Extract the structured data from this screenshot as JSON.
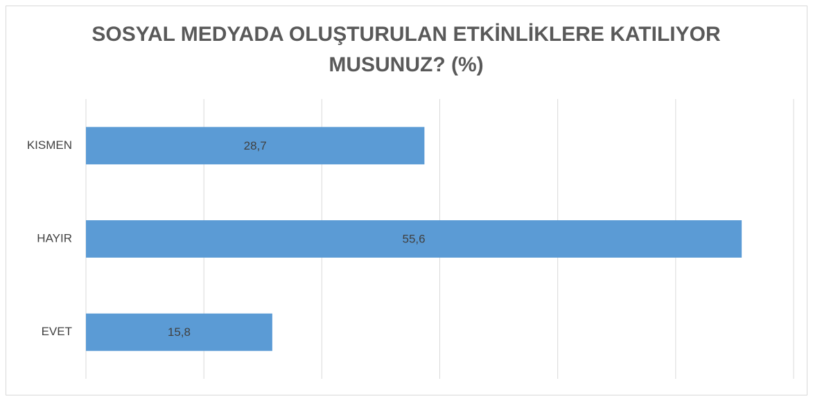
{
  "chart_data": {
    "type": "barh",
    "title": [
      "SOSYAL MEDYADA OLUŞTURULAN ETKİNLİKLERE KATILIYOR",
      "MUSUNUZ? (%)"
    ],
    "categories": [
      "KISMEN",
      "HAYIR",
      "EVET"
    ],
    "values": [
      28.7,
      55.6,
      15.8
    ],
    "value_labels": [
      "28,7",
      "55,6",
      "15,8"
    ],
    "color": "#5b9bd5",
    "xlim": [
      0,
      60
    ],
    "xticks": [
      0,
      10,
      20,
      30,
      40,
      50,
      60
    ],
    "grid": true
  }
}
